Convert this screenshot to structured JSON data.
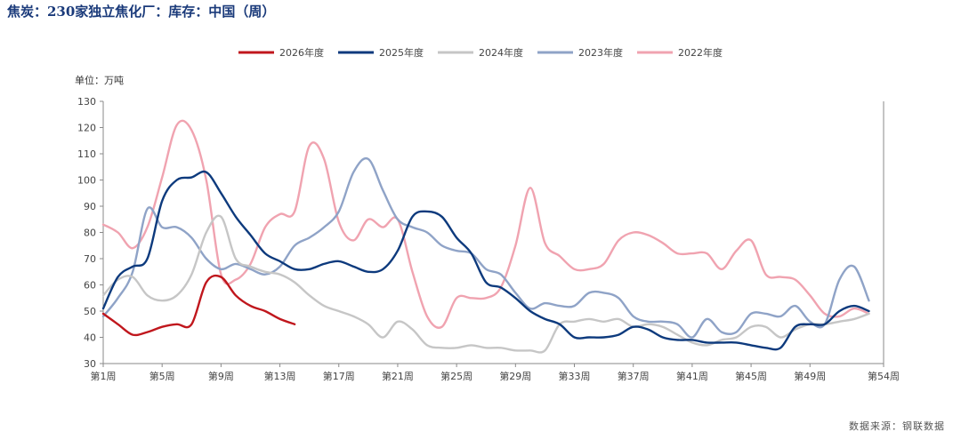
{
  "chart_data": {
    "type": "line",
    "title": "焦炭：230家独立焦化厂：库存：中国（周）",
    "ylabel": "单位：万吨",
    "source": "数据来源：钢联数据",
    "xlim": [
      1,
      54
    ],
    "ylim": [
      30,
      130
    ],
    "yticks": [
      30,
      40,
      50,
      60,
      70,
      80,
      90,
      100,
      110,
      120,
      130
    ],
    "xticks": [
      {
        "x": 1,
        "label": "第1周"
      },
      {
        "x": 5,
        "label": "第5周"
      },
      {
        "x": 9,
        "label": "第9周"
      },
      {
        "x": 13,
        "label": "第13周"
      },
      {
        "x": 17,
        "label": "第17周"
      },
      {
        "x": 21,
        "label": "第21周"
      },
      {
        "x": 25,
        "label": "第25周"
      },
      {
        "x": 29,
        "label": "第29周"
      },
      {
        "x": 33,
        "label": "第33周"
      },
      {
        "x": 37,
        "label": "第37周"
      },
      {
        "x": 41,
        "label": "第41周"
      },
      {
        "x": 45,
        "label": "第45周"
      },
      {
        "x": 49,
        "label": "第49周"
      },
      {
        "x": 54,
        "label": "第54周"
      }
    ],
    "series": [
      {
        "name": "2026年度",
        "color": "#c0171d",
        "x": [
          1,
          2,
          3,
          4,
          5,
          6,
          7,
          8,
          9,
          10,
          11,
          12,
          13,
          14
        ],
        "values": [
          49,
          45,
          41,
          42,
          44,
          45,
          45,
          61,
          63,
          56,
          52,
          50,
          47,
          45
        ]
      },
      {
        "name": "2025年度",
        "color": "#0d3a7d",
        "x": [
          1,
          2,
          3,
          4,
          5,
          6,
          7,
          8,
          9,
          10,
          11,
          12,
          13,
          14,
          15,
          16,
          17,
          18,
          19,
          20,
          21,
          22,
          23,
          24,
          25,
          26,
          27,
          28,
          29,
          30,
          31,
          32,
          33,
          34,
          35,
          36,
          37,
          38,
          39,
          40,
          41,
          42,
          43,
          44,
          45,
          46,
          47,
          48,
          49,
          50,
          51,
          52,
          53
        ],
        "values": [
          51,
          63,
          67,
          70,
          92,
          100,
          101,
          103,
          95,
          86,
          79,
          72,
          69,
          66,
          66,
          68,
          69,
          67,
          65,
          66,
          73,
          86,
          88,
          86,
          78,
          72,
          61,
          59,
          55,
          50,
          47,
          45,
          40,
          40,
          40,
          41,
          44,
          43,
          40,
          39,
          39,
          38,
          38,
          38,
          37,
          36,
          36,
          44,
          45,
          45,
          50,
          52,
          50
        ]
      },
      {
        "name": "2024年度",
        "color": "#c6c6c6",
        "x": [
          1,
          2,
          3,
          4,
          5,
          6,
          7,
          8,
          9,
          10,
          11,
          12,
          13,
          14,
          15,
          16,
          17,
          18,
          19,
          20,
          21,
          22,
          23,
          24,
          25,
          26,
          27,
          28,
          29,
          30,
          31,
          32,
          33,
          34,
          35,
          36,
          37,
          38,
          39,
          40,
          41,
          42,
          43,
          44,
          45,
          46,
          47,
          48,
          49,
          50,
          51,
          52,
          53
        ],
        "values": [
          56,
          62,
          63,
          56,
          54,
          56,
          64,
          80,
          86,
          70,
          67,
          65,
          64,
          61,
          56,
          52,
          50,
          48,
          45,
          40,
          46,
          43,
          37,
          36,
          36,
          37,
          36,
          36,
          35,
          35,
          35,
          45,
          46,
          47,
          46,
          47,
          44,
          45,
          44,
          41,
          38,
          37,
          39,
          40,
          44,
          44,
          40,
          43,
          45,
          45,
          46,
          47,
          49
        ]
      },
      {
        "name": "2023年度",
        "color": "#8fa3c7",
        "x": [
          1,
          2,
          3,
          4,
          5,
          6,
          7,
          8,
          9,
          10,
          11,
          12,
          13,
          14,
          15,
          16,
          17,
          18,
          19,
          20,
          21,
          22,
          23,
          24,
          25,
          26,
          27,
          28,
          29,
          30,
          31,
          32,
          33,
          34,
          35,
          36,
          37,
          38,
          39,
          40,
          41,
          42,
          43,
          44,
          45,
          46,
          47,
          48,
          49,
          50,
          51,
          52,
          53
        ],
        "values": [
          48,
          55,
          65,
          89,
          82,
          82,
          78,
          70,
          66,
          68,
          66,
          64,
          67,
          75,
          78,
          82,
          88,
          103,
          108,
          96,
          85,
          82,
          80,
          75,
          73,
          72,
          66,
          64,
          57,
          51,
          53,
          52,
          52,
          57,
          57,
          55,
          48,
          46,
          46,
          45,
          40,
          47,
          42,
          42,
          49,
          49,
          48,
          52,
          46,
          45,
          62,
          67,
          54
        ]
      },
      {
        "name": "2022年度",
        "color": "#f0a3b0",
        "x": [
          1,
          2,
          3,
          4,
          5,
          6,
          7,
          8,
          9,
          10,
          11,
          12,
          13,
          14,
          15,
          16,
          17,
          18,
          19,
          20,
          21,
          22,
          23,
          24,
          25,
          26,
          27,
          28,
          29,
          30,
          31,
          32,
          33,
          34,
          35,
          36,
          37,
          38,
          39,
          40,
          41,
          42,
          43,
          44,
          45,
          46,
          47,
          48,
          49,
          50,
          51,
          52,
          53
        ],
        "values": [
          83,
          80,
          74,
          82,
          101,
          121,
          119,
          100,
          64,
          62,
          68,
          82,
          87,
          88,
          113,
          108,
          84,
          77,
          85,
          82,
          85,
          65,
          48,
          44,
          55,
          55,
          55,
          59,
          75,
          97,
          76,
          71,
          66,
          66,
          68,
          77,
          80,
          79,
          76,
          72,
          72,
          72,
          66,
          73,
          77,
          64,
          63,
          62,
          56,
          49,
          48,
          51,
          49
        ]
      }
    ]
  }
}
